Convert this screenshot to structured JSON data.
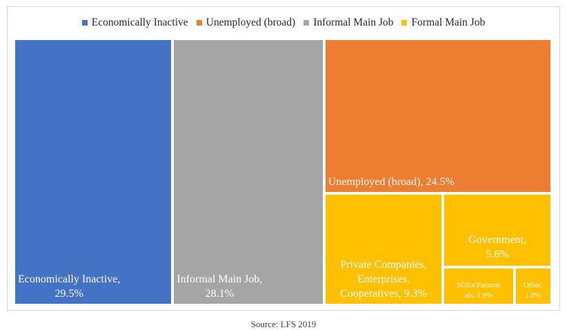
{
  "chart_data": {
    "type": "treemap",
    "legend": [
      {
        "name": "Economically Inactive",
        "color": "#4472C4"
      },
      {
        "name": "Unemployed (broad)",
        "color": "#ED7D31"
      },
      {
        "name": "Informal Main Job",
        "color": "#A5A5A5"
      },
      {
        "name": "Formal Main Job",
        "color": "#FFC000"
      }
    ],
    "legend_position": "top",
    "tiles": [
      {
        "name": "Economically Inactive",
        "group": "Economically Inactive",
        "value": 29.5,
        "label": "Economically Inactive,\n29.5%"
      },
      {
        "name": "Informal Main Job",
        "group": "Informal Main Job",
        "value": 28.1,
        "label": "Informal Main Job,\n28.1%"
      },
      {
        "name": "Unemployed (broad)",
        "group": "Unemployed (broad)",
        "value": 24.5,
        "label": "Unemployed (broad), 24.5%"
      },
      {
        "name": "Private Companies, Enterprises, Cooperatives",
        "group": "Formal Main Job",
        "value": 9.3,
        "label": "Private Companies,\nEnterprises,\nCooperatives, 9.3%"
      },
      {
        "name": "Government",
        "group": "Formal Main Job",
        "value": 5.6,
        "label": "Government,\n5.6%"
      },
      {
        "name": "SOEs/Parastatals",
        "group": "Formal Main Job",
        "value": 1.9,
        "label": "SOEs/Parastat\nals, 1.9%"
      },
      {
        "name": "Other",
        "group": "Formal Main Job",
        "value": 1.0,
        "label": "Other,\n1.0%"
      }
    ],
    "source": "Source: LFS 2019"
  }
}
